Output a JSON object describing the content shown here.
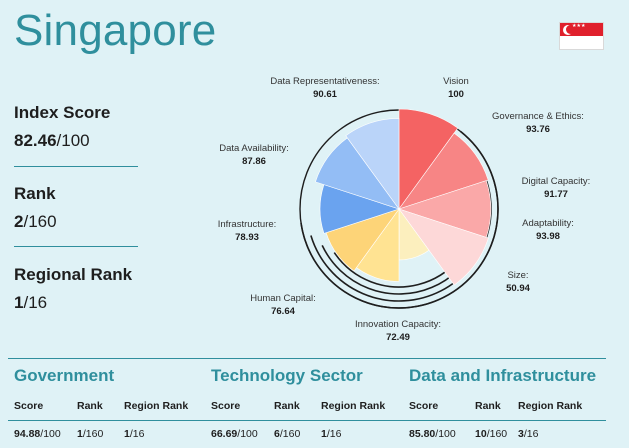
{
  "country": "Singapore",
  "flag_icon": "singapore-flag-icon",
  "index_score": {
    "label": "Index Score",
    "value": "82.46",
    "suffix": "/100"
  },
  "rank": {
    "label": "Rank",
    "value": "2",
    "suffix": "/160"
  },
  "regional_rank": {
    "label": "Regional Rank",
    "value": "1",
    "suffix": "/16"
  },
  "chart_data": {
    "type": "pie",
    "scale_max": 100,
    "categories": [
      "Vision",
      "Governance & Ethics:",
      "Digital Capacity:",
      "Adaptability:",
      "Size:",
      "Innovation Capacity:",
      "Human Capital:",
      "Infrastructure:",
      "Data Availability:",
      "Data Representativeness:"
    ],
    "display_values": [
      "100",
      "93.76",
      "91.77",
      "93.98",
      "50.94",
      "72.49",
      "76.64",
      "78.93",
      "87.86",
      "90.61"
    ],
    "values": [
      100,
      93.76,
      91.77,
      93.98,
      50.94,
      72.49,
      76.64,
      78.93,
      87.86,
      90.61
    ],
    "colors": [
      "#f46363",
      "#f78585",
      "#faa8a8",
      "#fdd8d8",
      "#fcefbe",
      "#ffe392",
      "#fdd478",
      "#6aa3ef",
      "#93bdf5",
      "#bad4f9"
    ],
    "ring_color": "#1e1e1e"
  },
  "sections": [
    {
      "title": "Government",
      "headers": [
        "Score",
        "Rank",
        "Region Rank"
      ],
      "score": "94.88",
      "score_suffix": "/100",
      "rank": "1",
      "rank_suffix": "/160",
      "region_rank": "1",
      "region_suffix": "/16"
    },
    {
      "title": "Technology Sector",
      "headers": [
        "Score",
        "Rank",
        "Region Rank"
      ],
      "score": "66.69",
      "score_suffix": "/100",
      "rank": "6",
      "rank_suffix": "/160",
      "region_rank": "1",
      "region_suffix": "/16"
    },
    {
      "title": "Data and Infrastructure",
      "headers": [
        "Score",
        "Rank",
        "Region Rank"
      ],
      "score": "85.80",
      "score_suffix": "/100",
      "rank": "10",
      "rank_suffix": "/160",
      "region_rank": "3",
      "region_suffix": "/16"
    }
  ]
}
